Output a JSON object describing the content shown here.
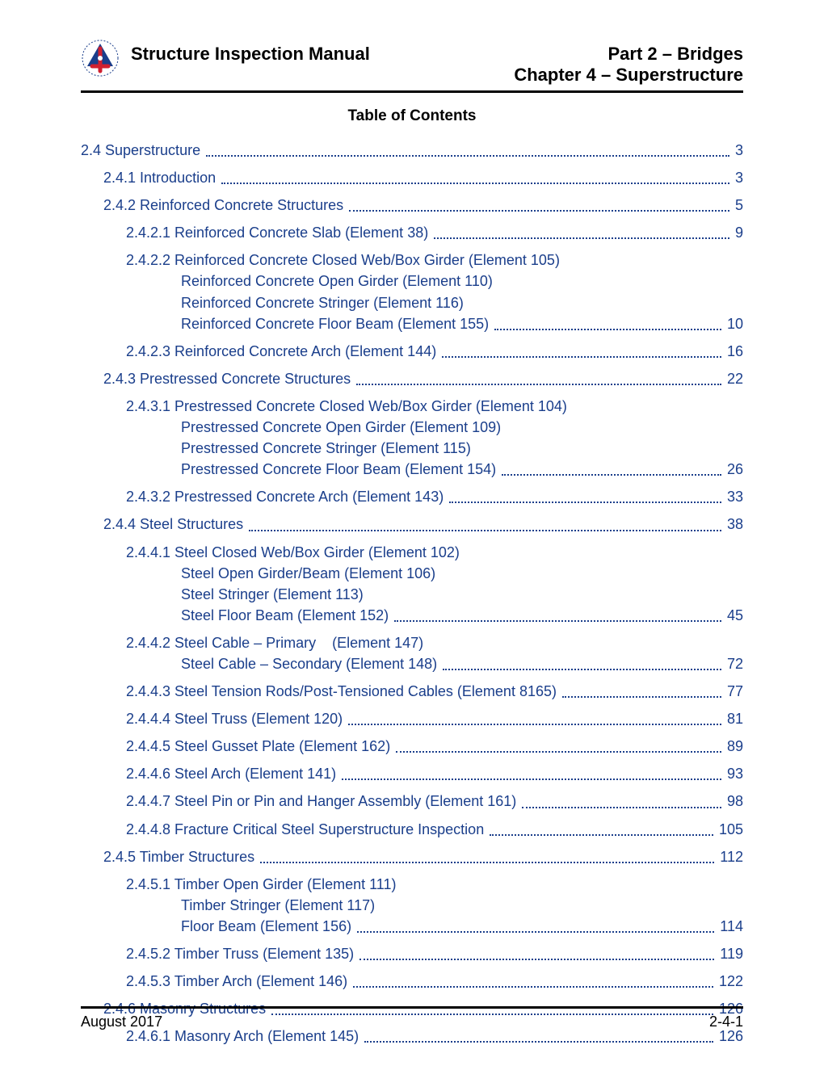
{
  "header": {
    "manual_title": "Structure Inspection Manual",
    "part": "Part 2 – Bridges",
    "chapter": "Chapter 4 – Superstructure"
  },
  "toc_title": "Table of Contents",
  "link_color": "#1a3e8b",
  "entries": [
    {
      "type": "simple",
      "indent": 0,
      "text": "2.4 Superstructure",
      "page": "3"
    },
    {
      "type": "simple",
      "indent": 1,
      "text": "2.4.1 Introduction",
      "page": "3"
    },
    {
      "type": "simple",
      "indent": 1,
      "text": "2.4.2 Reinforced Concrete Structures",
      "page": "5"
    },
    {
      "type": "simple",
      "indent": 2,
      "text": "2.4.2.1 Reinforced Concrete Slab (Element 38)",
      "page": "9"
    },
    {
      "type": "multi",
      "first": "2.4.2.2 Reinforced Concrete Closed Web/Box Girder (Element 105)",
      "cont": [
        "Reinforced Concrete Open Girder (Element 110)",
        "Reinforced Concrete Stringer (Element 116)"
      ],
      "last": "Reinforced Concrete Floor Beam (Element 155)",
      "page": "10"
    },
    {
      "type": "simple",
      "indent": 2,
      "text": "2.4.2.3 Reinforced Concrete Arch (Element 144)",
      "page": "16"
    },
    {
      "type": "simple",
      "indent": 1,
      "text": "2.4.3 Prestressed Concrete Structures",
      "page": "22"
    },
    {
      "type": "multi",
      "first": "2.4.3.1 Prestressed Concrete Closed Web/Box Girder (Element 104)",
      "cont": [
        "Prestressed Concrete Open Girder (Element 109)",
        "Prestressed Concrete Stringer (Element 115)"
      ],
      "last": "Prestressed Concrete Floor Beam (Element 154)",
      "page": "26"
    },
    {
      "type": "simple",
      "indent": 2,
      "text": "2.4.3.2 Prestressed Concrete Arch (Element 143)",
      "page": "33"
    },
    {
      "type": "simple",
      "indent": 1,
      "text": "2.4.4 Steel Structures",
      "page": "38"
    },
    {
      "type": "multi",
      "first": "2.4.4.1 Steel Closed Web/Box Girder (Element 102)",
      "cont": [
        "Steel Open Girder/Beam (Element 106)",
        "Steel Stringer (Element 113)"
      ],
      "last": "Steel Floor Beam (Element 152)",
      "page": "45"
    },
    {
      "type": "multi",
      "first": "2.4.4.2 Steel Cable – Primary    (Element 147)",
      "cont": [],
      "last": "Steel Cable – Secondary (Element 148)",
      "page": "72"
    },
    {
      "type": "simple",
      "indent": 2,
      "text": "2.4.4.3 Steel Tension Rods/Post-Tensioned Cables (Element 8165)",
      "page": "77"
    },
    {
      "type": "simple",
      "indent": 2,
      "text": "2.4.4.4 Steel Truss (Element 120)",
      "page": "81"
    },
    {
      "type": "simple",
      "indent": 2,
      "text": "2.4.4.5 Steel Gusset Plate (Element 162)",
      "page": "89"
    },
    {
      "type": "simple",
      "indent": 2,
      "text": "2.4.4.6 Steel Arch (Element 141)",
      "page": "93"
    },
    {
      "type": "simple",
      "indent": 2,
      "text": "2.4.4.7 Steel Pin or Pin and Hanger Assembly (Element 161)",
      "page": "98"
    },
    {
      "type": "simple",
      "indent": 2,
      "text": "2.4.4.8 Fracture Critical Steel Superstructure Inspection",
      "page": "105"
    },
    {
      "type": "simple",
      "indent": 1,
      "text": "2.4.5 Timber Structures",
      "page": "112"
    },
    {
      "type": "multi",
      "first": "2.4.5.1 Timber Open Girder (Element 111)",
      "cont": [
        "Timber Stringer (Element 117)"
      ],
      "last": "Floor Beam (Element 156)",
      "page": "114"
    },
    {
      "type": "simple",
      "indent": 2,
      "text": "2.4.5.2 Timber Truss (Element 135)",
      "page": "119"
    },
    {
      "type": "simple",
      "indent": 2,
      "text": "2.4.5.3 Timber Arch (Element 146)",
      "page": "122"
    },
    {
      "type": "simple",
      "indent": 1,
      "text": "2.4.6 Masonry Structures",
      "page": "126"
    },
    {
      "type": "simple",
      "indent": 2,
      "text": "2.4.6.1 Masonry Arch (Element 145)",
      "page": "126"
    }
  ],
  "footer": {
    "left": "August 2017",
    "right": "2-4-1"
  }
}
